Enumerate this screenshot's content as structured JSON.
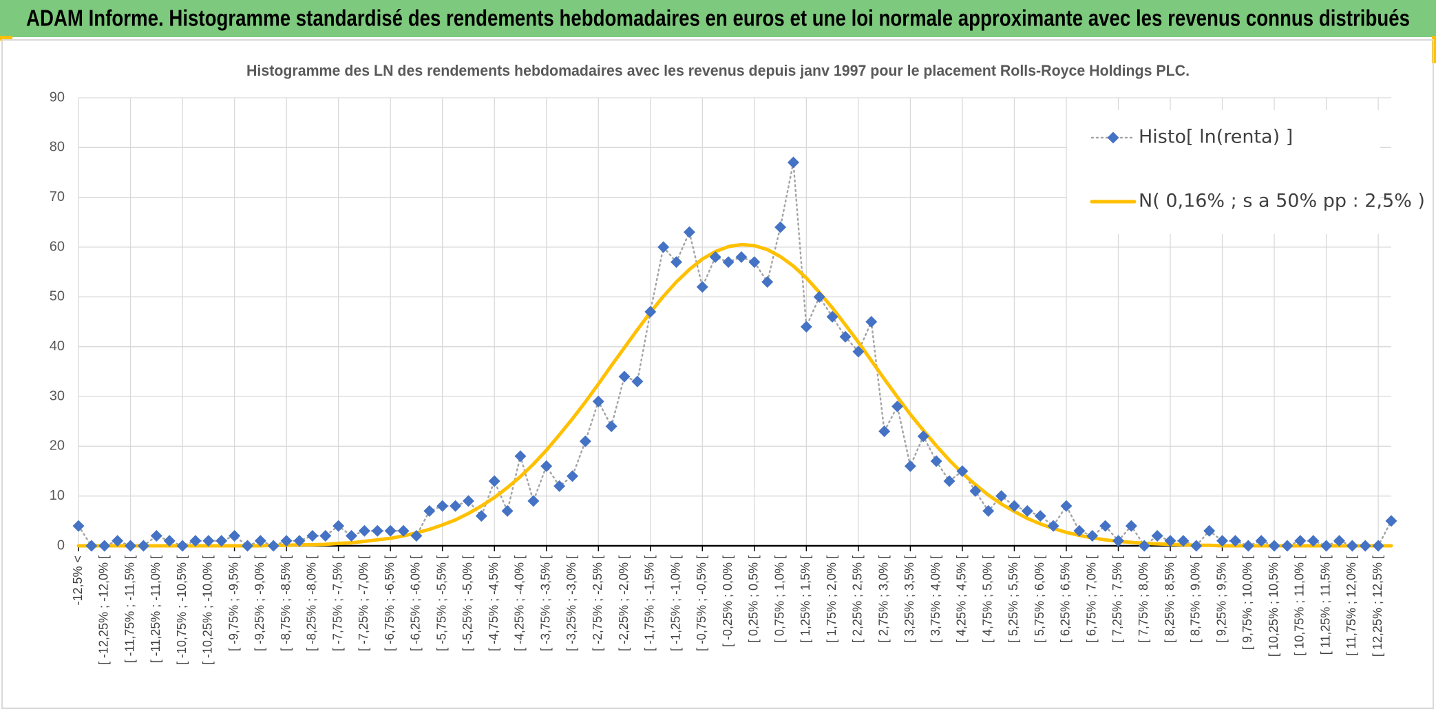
{
  "chart_data": {
    "type": "line",
    "header": "ADAM Informe. Histogramme standardisé des rendements hebdomadaires en euros et une loi normale approximante avec les revenus connus distribués",
    "title": "Histogramme des LN des rendements hebdomadaires avec les revenus depuis janv 1997 pour le placement Rolls-Royce Holdings PLC.",
    "categories": [
      "-12,5% <",
      null,
      "[ -12,25% ; -12,0% [",
      null,
      "[ -11,75% ; -11,5% [",
      null,
      "[ -11,25% ; -11,0% [",
      null,
      "[ -10,75% ; -10,5% [",
      null,
      "[ -10,25% ; -10,0% [",
      null,
      "[ -9,75% ; -9,5% [",
      null,
      "[ -9,25% ; -9,0% [",
      null,
      "[ -8,75% ; -8,5% [",
      null,
      "[ -8,25% ; -8,0% [",
      null,
      "[ -7,75% ; -7,5% [",
      null,
      "[ -7,25% ; -7,0% [",
      null,
      "[ -6,75% ; -6,5% [",
      null,
      "[ -6,25% ; -6,0% [",
      null,
      "[ -5,75% ; -5,5% [",
      null,
      "[ -5,25% ; -5,0% [",
      null,
      "[ -4,75% ; -4,5% [",
      null,
      "[ -4,25% ; -4,0% [",
      null,
      "[ -3,75% ; -3,5% [",
      null,
      "[ -3,25% ; -3,0% [",
      null,
      "[ -2,75% ; -2,5% [",
      null,
      "[ -2,25% ; -2,0% [",
      null,
      "[ -1,75% ; -1,5% [",
      null,
      "[ -1,25% ; -1,0% [",
      null,
      "[ -0,75% ; -0,5% [",
      null,
      "[ -0,25% ; 0,0% [",
      null,
      "[ 0,25% ; 0,5% [",
      null,
      "[ 0,75% ; 1,0% [",
      null,
      "[ 1,25% ; 1,5% [",
      null,
      "[ 1,75% ; 2,0% [",
      null,
      "[ 2,25% ; 2,5% [",
      null,
      "[ 2,75% ; 3,0% [",
      null,
      "[ 3,25% ; 3,5% [",
      null,
      "[ 3,75% ; 4,0% [",
      null,
      "[ 4,25% ; 4,5% [",
      null,
      "[ 4,75% ; 5,0% [",
      null,
      "[ 5,25% ; 5,5% [",
      null,
      "[ 5,75% ; 6,0% [",
      null,
      "[ 6,25% ; 6,5% [",
      null,
      "[ 6,75% ; 7,0% [",
      null,
      "[ 7,25% ; 7,5% [",
      null,
      "[ 7,75% ; 8,0% [",
      null,
      "[ 8,25% ; 8,5% [",
      null,
      "[ 8,75% ; 9,0% [",
      null,
      "[ 9,25% ; 9,5% [",
      null,
      "[ 9,75% ; 10,0% [",
      null,
      "[ 10,25% ; 10,5% [",
      null,
      "[ 10,75% ; 11,0% [",
      null,
      "[ 11,25% ; 11,5% [",
      null,
      "[ 11,75% ; 12,0% [",
      null,
      "[ 12,25% ; 12,5% [",
      null
    ],
    "series": [
      {
        "name": "Histo[ ln(renta) ]",
        "color": "#4472c4",
        "line_color": "#a5a5a5",
        "line_dash": "dotted",
        "marker": "diamond",
        "values": [
          4,
          0,
          0,
          1,
          0,
          0,
          2,
          1,
          0,
          1,
          1,
          1,
          2,
          0,
          1,
          0,
          1,
          1,
          2,
          2,
          4,
          2,
          3,
          3,
          3,
          3,
          2,
          7,
          8,
          8,
          9,
          6,
          13,
          7,
          18,
          9,
          16,
          12,
          14,
          21,
          29,
          24,
          34,
          33,
          47,
          60,
          57,
          63,
          52,
          58,
          57,
          58,
          57,
          53,
          64,
          77,
          44,
          50,
          46,
          42,
          39,
          45,
          23,
          28,
          16,
          22,
          17,
          13,
          15,
          11,
          7,
          10,
          8,
          7,
          6,
          4,
          8,
          3,
          2,
          4,
          1,
          4,
          0,
          2,
          1,
          1,
          0,
          3,
          1,
          1,
          0,
          1,
          0,
          0,
          1,
          1,
          0,
          1,
          0,
          0,
          0,
          5
        ]
      },
      {
        "name": "N( 0,16% ; s a 50% pp : 2,5% )",
        "color": "#ffc000",
        "line_color": "#ffc000",
        "values": [
          0,
          0,
          0,
          0,
          0,
          0,
          0,
          0,
          0,
          0,
          0,
          0,
          0,
          0,
          0,
          0.1,
          0.1,
          0.2,
          0.2,
          0.3,
          0.5,
          0.6,
          0.9,
          1.2,
          1.5,
          2.0,
          2.6,
          3.3,
          4.2,
          5.2,
          6.5,
          8.0,
          9.7,
          11.7,
          13.9,
          16.4,
          19.2,
          22.3,
          25.5,
          28.9,
          32.5,
          36.2,
          39.8,
          43.4,
          46.9,
          50.1,
          53.0,
          55.5,
          57.6,
          59.1,
          60.1,
          60.5,
          60.3,
          59.5,
          58.1,
          56.2,
          53.8,
          50.9,
          47.8,
          44.4,
          40.9,
          37.2,
          33.5,
          29.9,
          26.4,
          23.2,
          20.1,
          17.2,
          14.6,
          12.3,
          10.2,
          8.4,
          6.9,
          5.5,
          4.4,
          3.5,
          2.7,
          2.1,
          1.6,
          1.2,
          0.9,
          0.7,
          0.5,
          0.4,
          0.3,
          0.2,
          0.1,
          0.1,
          0,
          0,
          0,
          0,
          0,
          0,
          0,
          0,
          0,
          0,
          0,
          0,
          0,
          0
        ]
      }
    ],
    "ylim": [
      0,
      90
    ],
    "yticks": [
      0,
      10,
      20,
      30,
      40,
      50,
      60,
      70,
      80,
      90
    ],
    "grid": true,
    "legend": "upper right"
  }
}
